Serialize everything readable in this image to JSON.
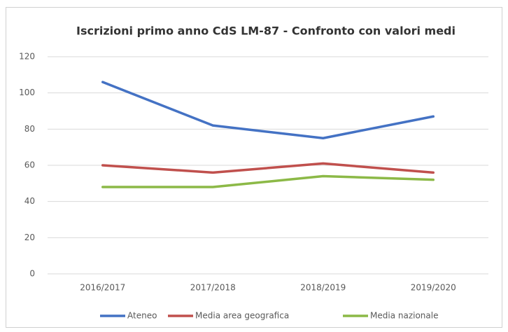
{
  "chart_data": {
    "type": "line",
    "title": "Iscrizioni primo anno CdS LM-87 - Confronto con valori medi",
    "categories": [
      "2016/2017",
      "2017/2018",
      "2018/2019",
      "2019/2020"
    ],
    "series": [
      {
        "name": "Ateneo",
        "color": "#4472c4",
        "values": [
          106,
          82,
          75,
          87
        ]
      },
      {
        "name": "Media area geografica",
        "color": "#c0504d",
        "values": [
          60,
          56,
          61,
          56
        ]
      },
      {
        "name": "Media nazionale",
        "color": "#8cb947",
        "values": [
          48,
          48,
          54,
          52
        ]
      }
    ],
    "ylim": [
      0,
      120
    ],
    "yticks": [
      0,
      20,
      40,
      60,
      80,
      100,
      120
    ],
    "grid": true,
    "legend": "bottom"
  }
}
